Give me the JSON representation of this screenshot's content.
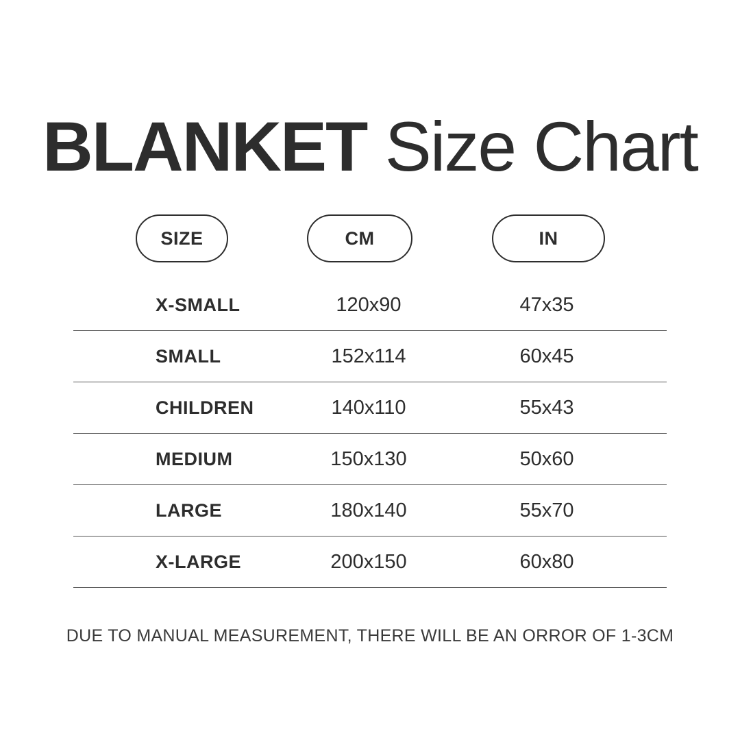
{
  "title": {
    "bold": "BLANKET",
    "light": " Size Chart"
  },
  "columns": [
    {
      "label": "SIZE"
    },
    {
      "label": "CM"
    },
    {
      "label": "IN"
    }
  ],
  "rows": [
    {
      "size": "X-SMALL",
      "cm": "120x90",
      "in": "47x35"
    },
    {
      "size": "SMALL",
      "cm": "152x114",
      "in": "60x45"
    },
    {
      "size": "CHILDREN",
      "cm": "140x110",
      "in": "55x43"
    },
    {
      "size": "MEDIUM",
      "cm": "150x130",
      "in": "50x60"
    },
    {
      "size": "LARGE",
      "cm": "180x140",
      "in": "55x70"
    },
    {
      "size": "X-LARGE",
      "cm": "200x150",
      "in": "60x80"
    }
  ],
  "footer": "DUE TO MANUAL MEASUREMENT, THERE WILL BE AN ORROR OF 1-3CM",
  "colors": {
    "text": "#2d2d2d",
    "divider": "#555555",
    "background": "#ffffff"
  },
  "chart_data": {
    "type": "table",
    "title": "BLANKET Size Chart",
    "columns": [
      "SIZE",
      "CM",
      "IN"
    ],
    "rows": [
      [
        "X-SMALL",
        "120x90",
        "47x35"
      ],
      [
        "SMALL",
        "152x114",
        "60x45"
      ],
      [
        "CHILDREN",
        "140x110",
        "55x43"
      ],
      [
        "MEDIUM",
        "150x130",
        "50x60"
      ],
      [
        "LARGE",
        "180x140",
        "55x70"
      ],
      [
        "X-LARGE",
        "200x150",
        "60x80"
      ]
    ],
    "note": "DUE TO MANUAL MEASUREMENT, THERE WILL BE AN ORROR OF 1-3CM"
  }
}
